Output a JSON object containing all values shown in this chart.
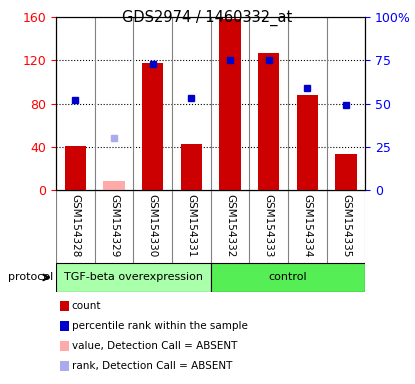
{
  "title": "GDS2974 / 1460332_at",
  "samples": [
    "GSM154328",
    "GSM154329",
    "GSM154330",
    "GSM154331",
    "GSM154332",
    "GSM154333",
    "GSM154334",
    "GSM154335"
  ],
  "bar_values": [
    41,
    8,
    118,
    43,
    158,
    127,
    88,
    33
  ],
  "bar_absent": [
    false,
    true,
    false,
    false,
    false,
    false,
    false,
    false
  ],
  "percentile_values": [
    52,
    30,
    73,
    53,
    75,
    75,
    59,
    49
  ],
  "percentile_absent": [
    false,
    true,
    false,
    false,
    false,
    false,
    false,
    false
  ],
  "bar_color": "#cc0000",
  "bar_absent_color": "#ffaaaa",
  "dot_color": "#0000cc",
  "dot_absent_color": "#aaaaee",
  "left_ylim": [
    0,
    160
  ],
  "right_ylim": [
    0,
    100
  ],
  "left_yticks": [
    0,
    40,
    80,
    120,
    160
  ],
  "right_yticks": [
    0,
    25,
    50,
    75,
    100
  ],
  "right_yticklabels": [
    "0",
    "25",
    "50",
    "75",
    "100%"
  ],
  "group1_label": "TGF-beta overexpression",
  "group2_label": "control",
  "group1_color": "#aaffaa",
  "group2_color": "#55ee55",
  "protocol_label": "protocol",
  "bg_color": "#dddddd",
  "legend_items": [
    {
      "label": "count",
      "color": "#cc0000",
      "type": "square"
    },
    {
      "label": "percentile rank within the sample",
      "color": "#0000cc",
      "type": "square"
    },
    {
      "label": "value, Detection Call = ABSENT",
      "color": "#ffbbbb",
      "type": "square"
    },
    {
      "label": "rank, Detection Call = ABSENT",
      "color": "#bbbbee",
      "type": "square"
    }
  ]
}
